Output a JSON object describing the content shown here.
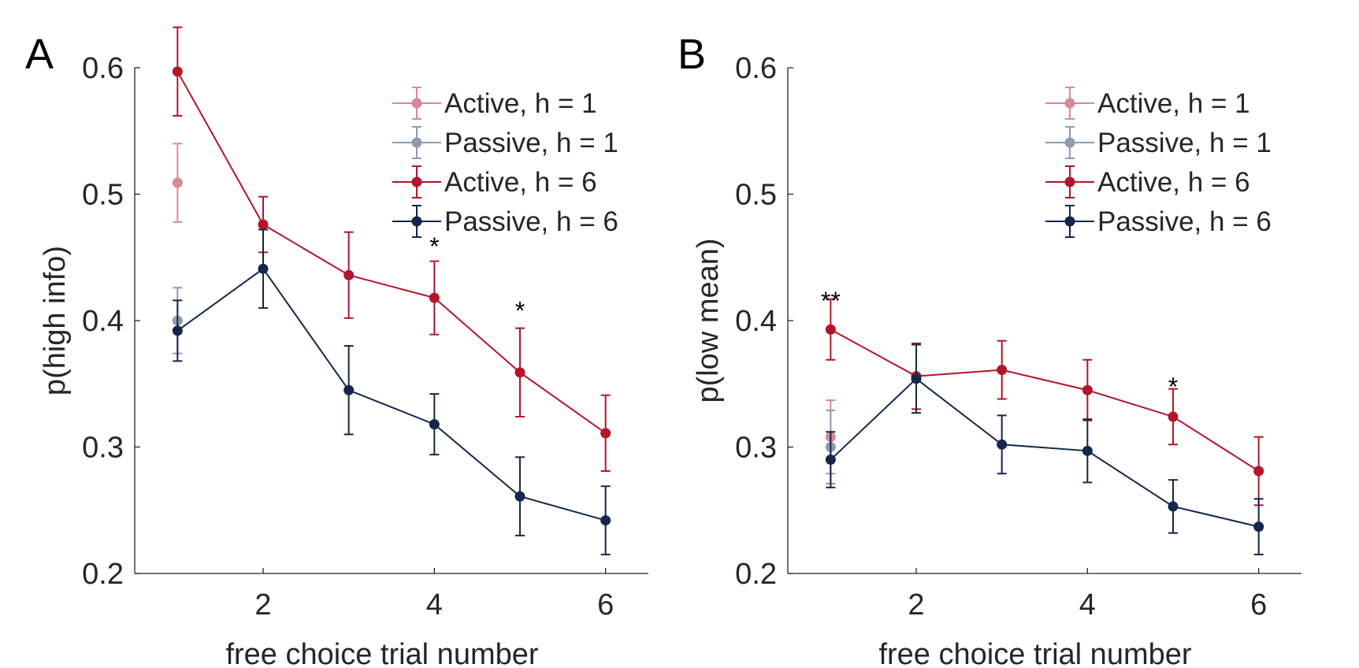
{
  "chart_data": [
    {
      "panel": "A",
      "type": "line",
      "xlabel": "free choice trial number",
      "ylabel": "p(high info)",
      "ylim": [
        0.2,
        0.6
      ],
      "xlim": [
        0.5,
        6.5
      ],
      "xticks": [
        "2",
        "4",
        "6"
      ],
      "yticks": [
        "0.2",
        "0.3",
        "0.4",
        "0.5",
        "0.6"
      ],
      "legend": "top-right",
      "series": [
        {
          "name": "Active, h = 1",
          "color": "#D98896",
          "x": [
            1
          ],
          "y": [
            0.509
          ],
          "err": [
            0.031
          ]
        },
        {
          "name": "Passive, h = 1",
          "color": "#8E9AB0",
          "x": [
            1
          ],
          "y": [
            0.4
          ],
          "err": [
            0.026
          ]
        },
        {
          "name": "Active, h = 6",
          "color": "#B31529",
          "x": [
            1,
            2,
            3,
            4,
            5,
            6
          ],
          "y": [
            0.597,
            0.476,
            0.436,
            0.418,
            0.359,
            0.311
          ],
          "err": [
            0.035,
            0.022,
            0.034,
            0.029,
            0.035,
            0.03
          ]
        },
        {
          "name": "Passive, h = 6",
          "color": "#14264B",
          "x": [
            1,
            2,
            3,
            4,
            5,
            6
          ],
          "y": [
            0.392,
            0.441,
            0.345,
            0.318,
            0.261,
            0.242
          ],
          "err": [
            0.024,
            0.031,
            0.035,
            0.024,
            0.031,
            0.027
          ]
        }
      ],
      "annotations": [
        {
          "text": "*",
          "x": 4,
          "y": 0.463
        },
        {
          "text": "*",
          "x": 5,
          "y": 0.412
        }
      ]
    },
    {
      "panel": "B",
      "type": "line",
      "xlabel": "free choice trial number",
      "ylabel": "p(low mean)",
      "ylim": [
        0.2,
        0.6
      ],
      "xlim": [
        0.5,
        6.5
      ],
      "xticks": [
        "2",
        "4",
        "6"
      ],
      "yticks": [
        "0.2",
        "0.3",
        "0.4",
        "0.5",
        "0.6"
      ],
      "legend": "top-right",
      "series": [
        {
          "name": "Active, h = 1",
          "color": "#D98896",
          "x": [
            1
          ],
          "y": [
            0.308
          ],
          "err": [
            0.029
          ]
        },
        {
          "name": "Passive, h = 1",
          "color": "#8E9AB0",
          "x": [
            1
          ],
          "y": [
            0.3
          ],
          "err": [
            0.029
          ]
        },
        {
          "name": "Active, h = 6",
          "color": "#B31529",
          "x": [
            1,
            2,
            3,
            4,
            5,
            6
          ],
          "y": [
            0.393,
            0.356,
            0.361,
            0.345,
            0.324,
            0.281
          ],
          "err": [
            0.024,
            0.026,
            0.023,
            0.024,
            0.022,
            0.027
          ]
        },
        {
          "name": "Passive, h = 6",
          "color": "#14264B",
          "x": [
            1,
            2,
            3,
            4,
            5,
            6
          ],
          "y": [
            0.29,
            0.354,
            0.302,
            0.297,
            0.253,
            0.237
          ],
          "err": [
            0.022,
            0.027,
            0.023,
            0.025,
            0.021,
            0.022
          ]
        }
      ],
      "annotations": [
        {
          "text": "**",
          "x": 1,
          "y": 0.42
        },
        {
          "text": "*",
          "x": 5,
          "y": 0.352
        }
      ]
    }
  ]
}
